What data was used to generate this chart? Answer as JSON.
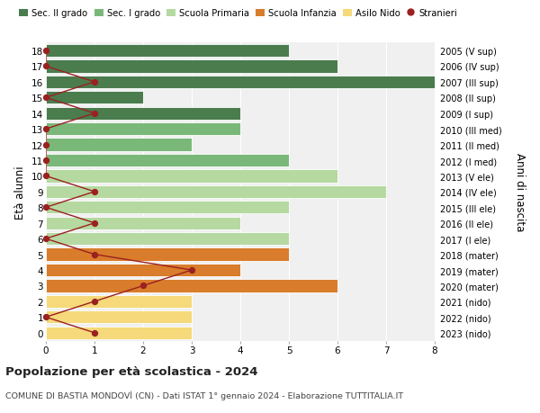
{
  "ages": [
    18,
    17,
    16,
    15,
    14,
    13,
    12,
    11,
    10,
    9,
    8,
    7,
    6,
    5,
    4,
    3,
    2,
    1,
    0
  ],
  "right_labels": [
    "2005 (V sup)",
    "2006 (IV sup)",
    "2007 (III sup)",
    "2008 (II sup)",
    "2009 (I sup)",
    "2010 (III med)",
    "2011 (II med)",
    "2012 (I med)",
    "2013 (V ele)",
    "2014 (IV ele)",
    "2015 (III ele)",
    "2016 (II ele)",
    "2017 (I ele)",
    "2018 (mater)",
    "2019 (mater)",
    "2020 (mater)",
    "2021 (nido)",
    "2022 (nido)",
    "2023 (nido)"
  ],
  "bar_values": [
    5,
    6,
    8,
    2,
    4,
    4,
    3,
    5,
    6,
    7,
    5,
    4,
    5,
    5,
    4,
    6,
    3,
    3,
    3
  ],
  "bar_colors": [
    "#4a7c4e",
    "#4a7c4e",
    "#4a7c4e",
    "#4a7c4e",
    "#4a7c4e",
    "#7ab87a",
    "#7ab87a",
    "#7ab87a",
    "#b5d9a0",
    "#b5d9a0",
    "#b5d9a0",
    "#b5d9a0",
    "#b5d9a0",
    "#d97c2b",
    "#d97c2b",
    "#d97c2b",
    "#f5d97a",
    "#f5d97a",
    "#f5d97a"
  ],
  "stranieri_values": [
    0,
    0,
    1,
    0,
    1,
    0,
    0,
    0,
    0,
    1,
    0,
    1,
    0,
    1,
    3,
    2,
    1,
    0,
    1
  ],
  "stranieri_color": "#9b2020",
  "legend_labels": [
    "Sec. II grado",
    "Sec. I grado",
    "Scuola Primaria",
    "Scuola Infanzia",
    "Asilo Nido",
    "Stranieri"
  ],
  "legend_colors": [
    "#4a7c4e",
    "#7ab87a",
    "#b5d9a0",
    "#d97c2b",
    "#f5d97a",
    "#9b2020"
  ],
  "ylabel": "Età alunni",
  "right_ylabel": "Anni di nascita",
  "title": "Popolazione per età scolastica - 2024",
  "subtitle": "COMUNE DI BASTIA MONDOVÌ (CN) - Dati ISTAT 1° gennaio 2024 - Elaborazione TUTTITALIA.IT",
  "xlim": [
    0,
    8
  ],
  "background_color": "#ffffff",
  "bar_background": "#f0f0f0"
}
